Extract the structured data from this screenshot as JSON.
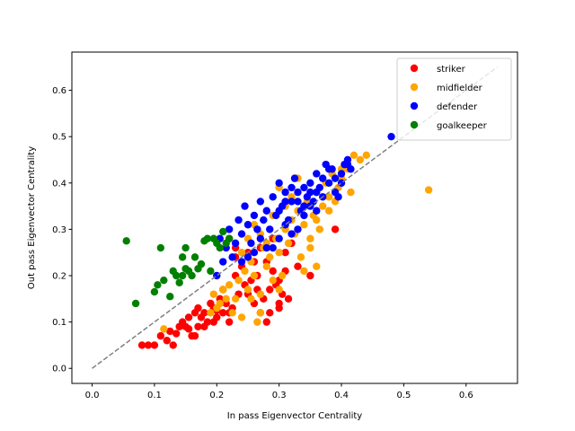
{
  "chart_data": {
    "type": "scatter",
    "xlabel": "In pass Eigenvector Centrality",
    "ylabel": "Out pass Eigenvector Centrality",
    "xlim": [
      -0.0325,
      0.6825
    ],
    "ylim": [
      -0.0325,
      0.6825
    ],
    "xticks": [
      "0.0",
      "0.1",
      "0.2",
      "0.3",
      "0.4",
      "0.5",
      "0.6"
    ],
    "yticks": [
      "0.0",
      "0.1",
      "0.2",
      "0.3",
      "0.4",
      "0.5",
      "0.6"
    ],
    "grid": false,
    "legend_position": "top-right",
    "reference_line": {
      "style": "dashed",
      "color": "#808080",
      "from": [
        0.0,
        0.0
      ],
      "to": [
        0.65,
        0.65
      ]
    },
    "series": [
      {
        "name": "striker",
        "color": "#ff0000",
        "points": [
          [
            0.08,
            0.05
          ],
          [
            0.09,
            0.05
          ],
          [
            0.1,
            0.05
          ],
          [
            0.11,
            0.07
          ],
          [
            0.12,
            0.06
          ],
          [
            0.125,
            0.08
          ],
          [
            0.13,
            0.05
          ],
          [
            0.135,
            0.075
          ],
          [
            0.14,
            0.09
          ],
          [
            0.145,
            0.1
          ],
          [
            0.15,
            0.09
          ],
          [
            0.155,
            0.11
          ],
          [
            0.16,
            0.07
          ],
          [
            0.165,
            0.07
          ],
          [
            0.165,
            0.12
          ],
          [
            0.17,
            0.09
          ],
          [
            0.175,
            0.11
          ],
          [
            0.18,
            0.12
          ],
          [
            0.185,
            0.1
          ],
          [
            0.19,
            0.14
          ],
          [
            0.195,
            0.13
          ],
          [
            0.2,
            0.11
          ],
          [
            0.205,
            0.15
          ],
          [
            0.21,
            0.12
          ],
          [
            0.215,
            0.14
          ],
          [
            0.22,
            0.1
          ],
          [
            0.225,
            0.13
          ],
          [
            0.23,
            0.2
          ],
          [
            0.235,
            0.16
          ],
          [
            0.24,
            0.22
          ],
          [
            0.245,
            0.18
          ],
          [
            0.25,
            0.25
          ],
          [
            0.255,
            0.19
          ],
          [
            0.26,
            0.14
          ],
          [
            0.265,
            0.2
          ],
          [
            0.27,
            0.12
          ],
          [
            0.275,
            0.15
          ],
          [
            0.28,
            0.23
          ],
          [
            0.285,
            0.17
          ],
          [
            0.29,
            0.21
          ],
          [
            0.295,
            0.18
          ],
          [
            0.3,
            0.13
          ],
          [
            0.3,
            0.19
          ],
          [
            0.305,
            0.16
          ],
          [
            0.31,
            0.25
          ],
          [
            0.315,
            0.15
          ],
          [
            0.32,
            0.27
          ],
          [
            0.33,
            0.22
          ],
          [
            0.35,
            0.2
          ],
          [
            0.39,
            0.3
          ],
          [
            0.285,
            0.12
          ],
          [
            0.25,
            0.16
          ],
          [
            0.22,
            0.12
          ],
          [
            0.195,
            0.1
          ],
          [
            0.21,
            0.17
          ],
          [
            0.23,
            0.24
          ],
          [
            0.26,
            0.23
          ],
          [
            0.27,
            0.26
          ],
          [
            0.29,
            0.28
          ],
          [
            0.31,
            0.21
          ],
          [
            0.23,
            0.26
          ],
          [
            0.22,
            0.28
          ],
          [
            0.2,
            0.125
          ],
          [
            0.18,
            0.09
          ],
          [
            0.17,
            0.13
          ],
          [
            0.155,
            0.085
          ],
          [
            0.28,
            0.1
          ],
          [
            0.3,
            0.14
          ],
          [
            0.265,
            0.17
          ]
        ]
      },
      {
        "name": "midfielder",
        "color": "#ffa500",
        "points": [
          [
            0.115,
            0.085
          ],
          [
            0.19,
            0.12
          ],
          [
            0.195,
            0.16
          ],
          [
            0.2,
            0.13
          ],
          [
            0.205,
            0.14
          ],
          [
            0.21,
            0.17
          ],
          [
            0.215,
            0.15
          ],
          [
            0.22,
            0.18
          ],
          [
            0.225,
            0.12
          ],
          [
            0.23,
            0.15
          ],
          [
            0.235,
            0.19
          ],
          [
            0.24,
            0.11
          ],
          [
            0.245,
            0.21
          ],
          [
            0.25,
            0.17
          ],
          [
            0.255,
            0.23
          ],
          [
            0.26,
            0.2
          ],
          [
            0.265,
            0.1
          ],
          [
            0.27,
            0.16
          ],
          [
            0.275,
            0.26
          ],
          [
            0.28,
            0.22
          ],
          [
            0.285,
            0.24
          ],
          [
            0.29,
            0.19
          ],
          [
            0.295,
            0.28
          ],
          [
            0.3,
            0.25
          ],
          [
            0.305,
            0.2
          ],
          [
            0.31,
            0.3
          ],
          [
            0.315,
            0.27
          ],
          [
            0.32,
            0.32
          ],
          [
            0.325,
            0.29
          ],
          [
            0.33,
            0.34
          ],
          [
            0.335,
            0.24
          ],
          [
            0.34,
            0.31
          ],
          [
            0.345,
            0.36
          ],
          [
            0.35,
            0.28
          ],
          [
            0.355,
            0.33
          ],
          [
            0.36,
            0.38
          ],
          [
            0.365,
            0.3
          ],
          [
            0.37,
            0.35
          ],
          [
            0.375,
            0.4
          ],
          [
            0.38,
            0.37
          ],
          [
            0.385,
            0.42
          ],
          [
            0.39,
            0.36
          ],
          [
            0.395,
            0.39
          ],
          [
            0.4,
            0.41
          ],
          [
            0.405,
            0.44
          ],
          [
            0.41,
            0.43
          ],
          [
            0.415,
            0.38
          ],
          [
            0.42,
            0.46
          ],
          [
            0.43,
            0.45
          ],
          [
            0.44,
            0.46
          ],
          [
            0.54,
            0.385
          ],
          [
            0.3,
            0.39
          ],
          [
            0.33,
            0.41
          ],
          [
            0.35,
            0.26
          ],
          [
            0.36,
            0.22
          ],
          [
            0.34,
            0.21
          ],
          [
            0.28,
            0.27
          ],
          [
            0.27,
            0.29
          ],
          [
            0.26,
            0.31
          ],
          [
            0.25,
            0.28
          ],
          [
            0.24,
            0.25
          ],
          [
            0.29,
            0.33
          ],
          [
            0.31,
            0.35
          ],
          [
            0.32,
            0.37
          ],
          [
            0.27,
            0.12
          ],
          [
            0.255,
            0.15
          ],
          [
            0.3,
            0.17
          ],
          [
            0.36,
            0.32
          ],
          [
            0.38,
            0.34
          ],
          [
            0.4,
            0.43
          ]
        ]
      },
      {
        "name": "defender",
        "color": "#0000ff",
        "points": [
          [
            0.2,
            0.2
          ],
          [
            0.205,
            0.28
          ],
          [
            0.21,
            0.23
          ],
          [
            0.215,
            0.26
          ],
          [
            0.22,
            0.3
          ],
          [
            0.225,
            0.24
          ],
          [
            0.23,
            0.27
          ],
          [
            0.235,
            0.32
          ],
          [
            0.24,
            0.29
          ],
          [
            0.245,
            0.35
          ],
          [
            0.25,
            0.31
          ],
          [
            0.255,
            0.27
          ],
          [
            0.26,
            0.33
          ],
          [
            0.265,
            0.3
          ],
          [
            0.27,
            0.36
          ],
          [
            0.275,
            0.32
          ],
          [
            0.28,
            0.34
          ],
          [
            0.285,
            0.3
          ],
          [
            0.29,
            0.37
          ],
          [
            0.295,
            0.33
          ],
          [
            0.3,
            0.4
          ],
          [
            0.305,
            0.35
          ],
          [
            0.31,
            0.38
          ],
          [
            0.315,
            0.32
          ],
          [
            0.32,
            0.36
          ],
          [
            0.325,
            0.41
          ],
          [
            0.33,
            0.38
          ],
          [
            0.335,
            0.34
          ],
          [
            0.34,
            0.39
          ],
          [
            0.345,
            0.37
          ],
          [
            0.35,
            0.4
          ],
          [
            0.355,
            0.36
          ],
          [
            0.36,
            0.42
          ],
          [
            0.365,
            0.39
          ],
          [
            0.37,
            0.41
          ],
          [
            0.375,
            0.44
          ],
          [
            0.38,
            0.4
          ],
          [
            0.385,
            0.43
          ],
          [
            0.39,
            0.38
          ],
          [
            0.395,
            0.37
          ],
          [
            0.4,
            0.42
          ],
          [
            0.405,
            0.44
          ],
          [
            0.41,
            0.45
          ],
          [
            0.415,
            0.43
          ],
          [
            0.48,
            0.5
          ],
          [
            0.29,
            0.26
          ],
          [
            0.3,
            0.28
          ],
          [
            0.31,
            0.31
          ],
          [
            0.32,
            0.29
          ],
          [
            0.33,
            0.3
          ],
          [
            0.34,
            0.33
          ],
          [
            0.35,
            0.35
          ],
          [
            0.36,
            0.34
          ],
          [
            0.37,
            0.37
          ],
          [
            0.28,
            0.26
          ],
          [
            0.27,
            0.28
          ],
          [
            0.26,
            0.25
          ],
          [
            0.25,
            0.24
          ],
          [
            0.24,
            0.23
          ],
          [
            0.3,
            0.34
          ],
          [
            0.31,
            0.36
          ],
          [
            0.32,
            0.39
          ],
          [
            0.33,
            0.36
          ],
          [
            0.35,
            0.38
          ],
          [
            0.36,
            0.38
          ],
          [
            0.34,
            0.35
          ],
          [
            0.38,
            0.43
          ],
          [
            0.39,
            0.41
          ],
          [
            0.41,
            0.44
          ],
          [
            0.4,
            0.4
          ]
        ]
      },
      {
        "name": "goalkeeper",
        "color": "#008000",
        "points": [
          [
            0.055,
            0.275
          ],
          [
            0.07,
            0.14
          ],
          [
            0.1,
            0.165
          ],
          [
            0.105,
            0.18
          ],
          [
            0.11,
            0.26
          ],
          [
            0.115,
            0.19
          ],
          [
            0.125,
            0.155
          ],
          [
            0.13,
            0.21
          ],
          [
            0.135,
            0.2
          ],
          [
            0.14,
            0.185
          ],
          [
            0.145,
            0.24
          ],
          [
            0.15,
            0.26
          ],
          [
            0.15,
            0.215
          ],
          [
            0.155,
            0.21
          ],
          [
            0.16,
            0.2
          ],
          [
            0.165,
            0.24
          ],
          [
            0.17,
            0.215
          ],
          [
            0.175,
            0.225
          ],
          [
            0.18,
            0.275
          ],
          [
            0.185,
            0.28
          ],
          [
            0.19,
            0.21
          ],
          [
            0.195,
            0.28
          ],
          [
            0.2,
            0.27
          ],
          [
            0.205,
            0.26
          ],
          [
            0.21,
            0.295
          ],
          [
            0.215,
            0.27
          ],
          [
            0.22,
            0.28
          ],
          [
            0.145,
            0.2
          ]
        ]
      }
    ]
  }
}
